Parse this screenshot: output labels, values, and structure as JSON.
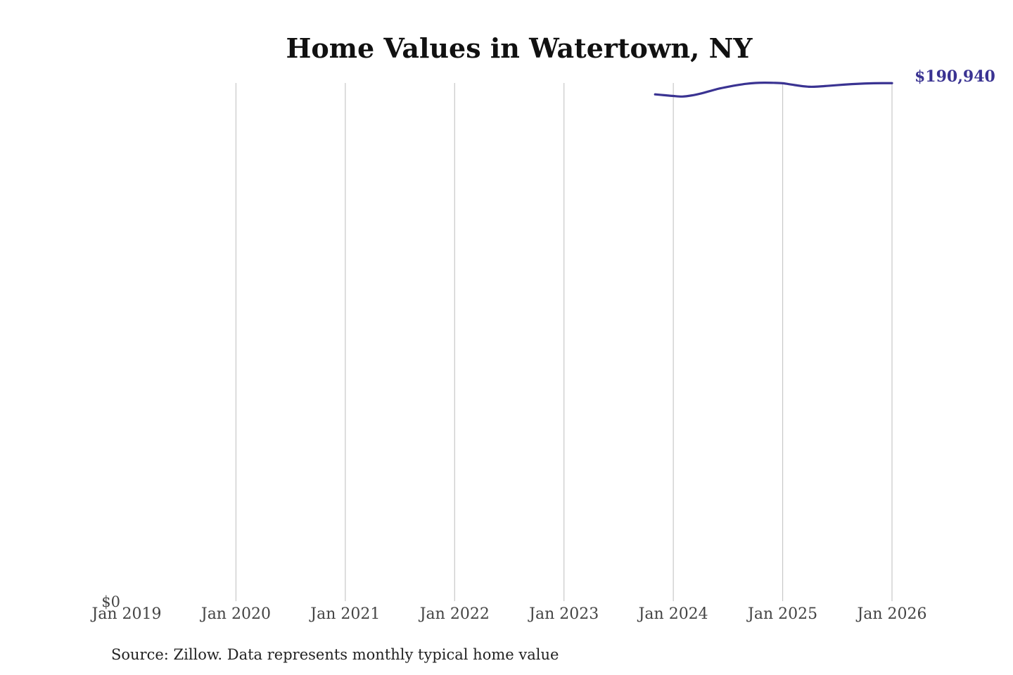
{
  "chart_data": {
    "type": "line",
    "title": "Home Values in Watertown, NY",
    "xlabel": "",
    "ylabel": "",
    "x_ticks": [
      "Jan 2019",
      "Jan 2020",
      "Jan 2021",
      "Jan 2022",
      "Jan 2023",
      "Jan 2024",
      "Jan 2025",
      "Jan 2026"
    ],
    "y_ticks": [
      "$0"
    ],
    "ylim": [
      0,
      191000
    ],
    "xlim": [
      "2019-01",
      "2026-02"
    ],
    "grid": "vertical",
    "series": [
      {
        "color": "#3a3392",
        "points": [
          {
            "x": "2023-11",
            "y": 186800
          },
          {
            "x": "2023-12",
            "y": 186500
          },
          {
            "x": "2024-01",
            "y": 186200
          },
          {
            "x": "2024-02",
            "y": 186000
          },
          {
            "x": "2024-03",
            "y": 186400
          },
          {
            "x": "2024-04",
            "y": 187100
          },
          {
            "x": "2024-05",
            "y": 188000
          },
          {
            "x": "2024-06",
            "y": 188900
          },
          {
            "x": "2024-07",
            "y": 189600
          },
          {
            "x": "2024-08",
            "y": 190200
          },
          {
            "x": "2024-09",
            "y": 190700
          },
          {
            "x": "2024-10",
            "y": 191000
          },
          {
            "x": "2024-11",
            "y": 191100
          },
          {
            "x": "2024-12",
            "y": 191050
          },
          {
            "x": "2025-01",
            "y": 190900
          },
          {
            "x": "2025-02",
            "y": 190400
          },
          {
            "x": "2025-03",
            "y": 189900
          },
          {
            "x": "2025-04",
            "y": 189600
          },
          {
            "x": "2025-05",
            "y": 189700
          },
          {
            "x": "2025-06",
            "y": 189950
          },
          {
            "x": "2025-07",
            "y": 190200
          },
          {
            "x": "2025-08",
            "y": 190450
          },
          {
            "x": "2025-09",
            "y": 190650
          },
          {
            "x": "2025-10",
            "y": 190800
          },
          {
            "x": "2025-11",
            "y": 190900
          },
          {
            "x": "2025-12",
            "y": 190940
          },
          {
            "x": "2026-01",
            "y": 190940
          }
        ]
      }
    ],
    "end_label": "$190,940",
    "source": "Source: Zillow. Data represents monthly typical home value"
  }
}
